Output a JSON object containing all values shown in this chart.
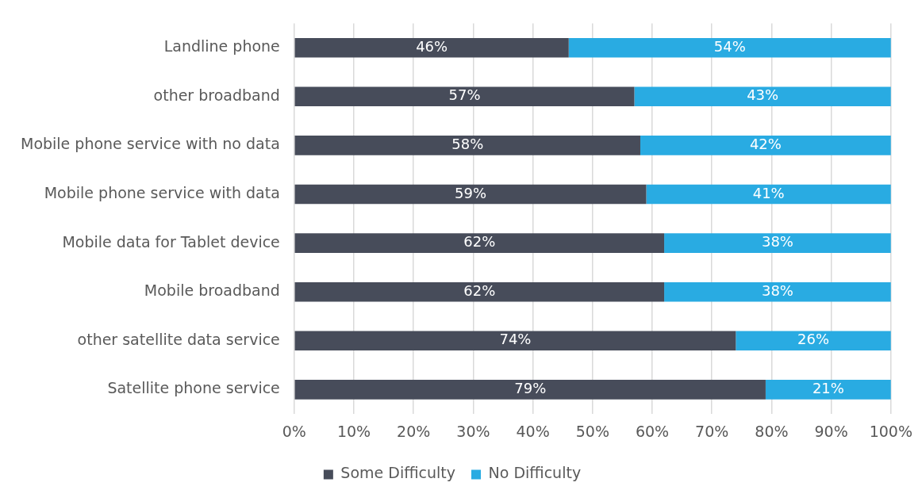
{
  "chart_data": {
    "type": "bar",
    "orientation": "horizontal",
    "stacked": true,
    "categories": [
      "Landline phone",
      "other broadband",
      "Mobile phone service with no data",
      "Mobile phone service with data",
      "Mobile data for Tablet device",
      "Mobile broadband",
      "other satellite data service",
      "Satellite phone service"
    ],
    "series": [
      {
        "name": "Some Difficulty",
        "color": "#474c5a",
        "values": [
          46,
          57,
          58,
          59,
          62,
          62,
          74,
          79
        ],
        "value_labels": [
          "46%",
          "57%",
          "58%",
          "59%",
          "62%",
          "62%",
          "74%",
          "79%"
        ]
      },
      {
        "name": "No Difficulty",
        "color": "#29abe2",
        "values": [
          54,
          43,
          42,
          41,
          38,
          38,
          26,
          21
        ],
        "value_labels": [
          "54%",
          "43%",
          "42%",
          "41%",
          "38%",
          "38%",
          "26%",
          "21%"
        ]
      }
    ],
    "xlim": [
      0,
      100
    ],
    "xticks": [
      {
        "value": 0,
        "label": "0%"
      },
      {
        "value": 10,
        "label": "10%"
      },
      {
        "value": 20,
        "label": "20%"
      },
      {
        "value": 30,
        "label": "30%"
      },
      {
        "value": 40,
        "label": "40%"
      },
      {
        "value": 50,
        "label": "50%"
      },
      {
        "value": 60,
        "label": "60%"
      },
      {
        "value": 70,
        "label": "70%"
      },
      {
        "value": 80,
        "label": "80%"
      },
      {
        "value": 90,
        "label": "90%"
      },
      {
        "value": 100,
        "label": "100%"
      }
    ],
    "grid": "x",
    "legend": "bottom"
  }
}
